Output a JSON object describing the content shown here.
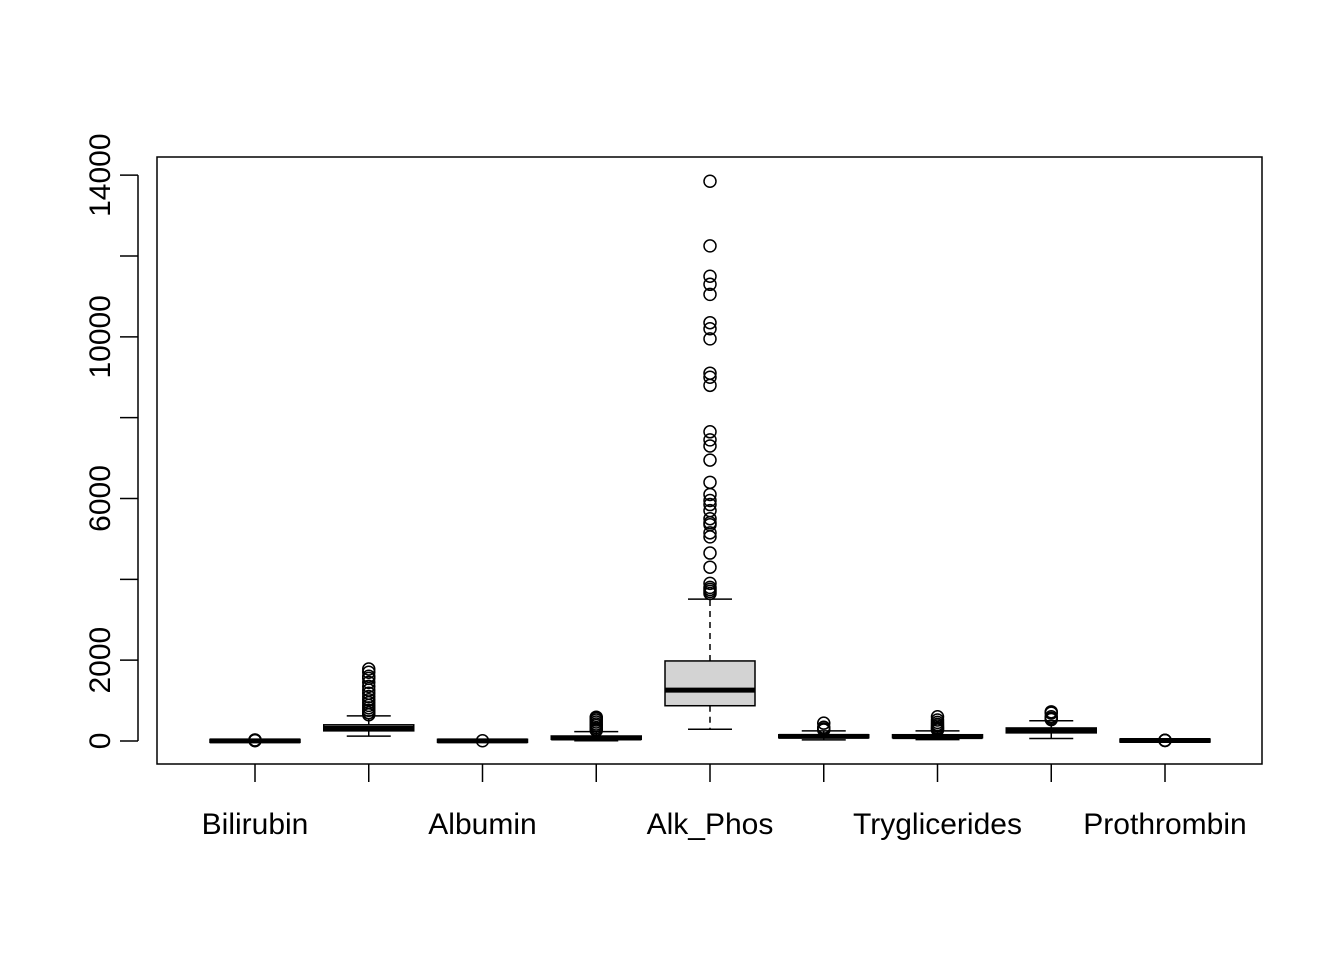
{
  "chart_data": {
    "type": "boxplot",
    "title": "",
    "xlabel": "",
    "ylabel": "",
    "ylim": [
      -570,
      14450
    ],
    "y_ticks": [
      {
        "value": 0,
        "label": "0"
      },
      {
        "value": 2000,
        "label": "2000"
      },
      {
        "value": 6000,
        "label": "6000"
      },
      {
        "value": 10000,
        "label": "10000"
      },
      {
        "value": 14000,
        "label": "14000"
      }
    ],
    "y_minor_ticks": [
      4000,
      8000,
      12000
    ],
    "x_tick_labels": [
      "Bilirubin",
      "",
      "Albumin",
      "",
      "Alk_Phos",
      "",
      "Tryglicerides",
      "",
      "Prothrombin"
    ],
    "box_fill": "#d3d3d3",
    "grid": false,
    "boxes": [
      {
        "label": "Bilirubin",
        "min": 0.3,
        "q1": 0.8,
        "median": 1.4,
        "q3": 3.4,
        "max": 7.1,
        "outliers": [
          8,
          11,
          14,
          17,
          20,
          25
        ]
      },
      {
        "label": "",
        "min": 120,
        "q1": 250,
        "median": 310,
        "q3": 400,
        "max": 620,
        "outliers": [
          650,
          700,
          760,
          820,
          880,
          950,
          1020,
          1100,
          1180,
          1260,
          1350,
          1450,
          1550,
          1600,
          1700,
          1780
        ]
      },
      {
        "label": "Albumin",
        "min": 2.5,
        "q1": 3.3,
        "median": 3.5,
        "q3": 3.8,
        "max": 4.4,
        "outliers": [
          4.6
        ]
      },
      {
        "label": "",
        "min": 4,
        "q1": 41,
        "median": 73,
        "q3": 123,
        "max": 230,
        "outliers": [
          260,
          290,
          330,
          380,
          420,
          470,
          520,
          560,
          588
        ]
      },
      {
        "label": "Alk_Phos",
        "min": 289,
        "q1": 872,
        "median": 1259,
        "q3": 1980,
        "max": 3510,
        "outliers": [
          3650,
          3700,
          3750,
          3800,
          3900,
          4300,
          4650,
          5050,
          5150,
          5350,
          5400,
          5500,
          5700,
          5850,
          5950,
          6100,
          6400,
          6950,
          7300,
          7450,
          7650,
          8800,
          9000,
          9100,
          9950,
          10200,
          10350,
          11050,
          11300,
          11500,
          12250,
          13850
        ]
      },
      {
        "label": "",
        "min": 26,
        "q1": 80,
        "median": 114,
        "q3": 152,
        "max": 250,
        "outliers": [
          270,
          300,
          338,
          440
        ]
      },
      {
        "label": "Tryglicerides",
        "min": 33,
        "q1": 84,
        "median": 108,
        "q3": 151,
        "max": 250,
        "outliers": [
          270,
          300,
          330,
          370,
          410,
          460,
          520,
          598
        ]
      },
      {
        "label": "",
        "min": 62,
        "q1": 200,
        "median": 257,
        "q3": 322,
        "max": 500,
        "outliers": [
          530,
          560,
          600,
          690,
          721
        ]
      },
      {
        "label": "Prothrombin",
        "min": 9,
        "q1": 10,
        "median": 10.6,
        "q3": 11.1,
        "max": 12.5,
        "outliers": [
          13,
          14,
          15,
          18
        ]
      }
    ]
  }
}
